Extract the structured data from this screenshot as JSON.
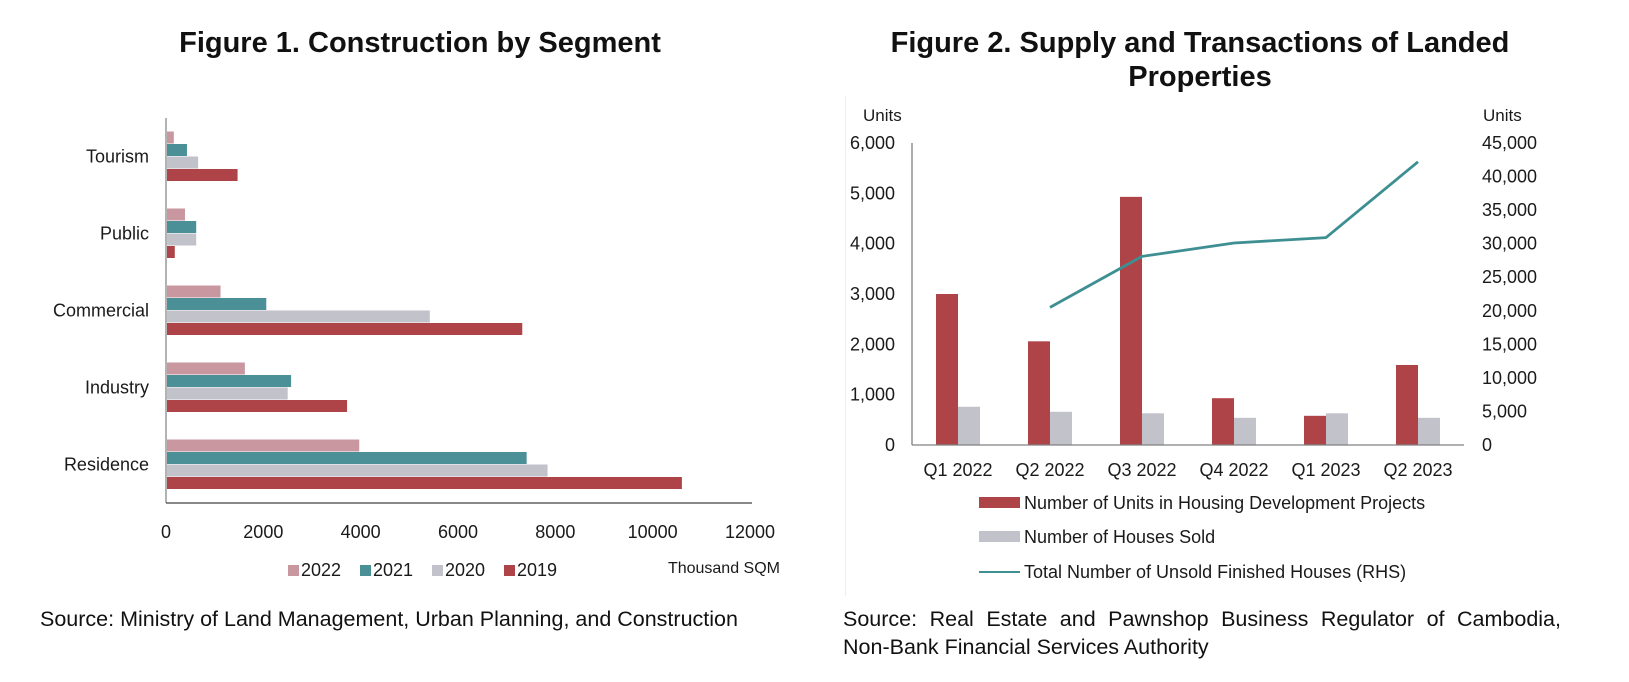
{
  "figure1": {
    "title": "Figure 1. Construction by Segment",
    "source": "Source: Ministry of Land Management, Urban Planning, and Construction"
  },
  "figure2": {
    "title": "Figure 2. Supply and Transactions of Landed Properties",
    "source": "Source: Real Estate and Pawnshop Business Regulator of Cambodia, Non-Bank Financial Services Authority"
  },
  "chart_data": [
    {
      "type": "bar",
      "orientation": "horizontal",
      "title": "Figure 1. Construction by Segment",
      "categories": [
        "Tourism",
        "Public",
        "Commercial",
        "Industry",
        "Residence"
      ],
      "series": [
        {
          "name": "2022",
          "color": "#C9979F",
          "values": [
            140,
            370,
            1100,
            1600,
            3950
          ]
        },
        {
          "name": "2021",
          "color": "#4A9096",
          "values": [
            410,
            600,
            2040,
            2550,
            7390
          ]
        },
        {
          "name": "2020",
          "color": "#C2C2CA",
          "values": [
            640,
            600,
            5400,
            2480,
            7820
          ]
        },
        {
          "name": "2019",
          "color": "#AE4448",
          "values": [
            1450,
            160,
            7300,
            3700,
            10580
          ]
        }
      ],
      "xlabel": "Thousand SQM",
      "ylabel": "",
      "xlim": [
        0,
        12000
      ],
      "xticks": [
        "0",
        "2000",
        "4000",
        "6000",
        "8000",
        "10000",
        "12000"
      ],
      "grid": false,
      "legend": "bottom"
    },
    {
      "type": "bar+line",
      "title": "Figure 2. Supply and Transactions of Landed Properties",
      "categories": [
        "Q1 2022",
        "Q2 2022",
        "Q3 2022",
        "Q4 2022",
        "Q1 2023",
        "Q2 2023"
      ],
      "left_axis": {
        "label": "Units",
        "ylim": [
          0,
          6000
        ],
        "ticks": [
          "0",
          "1,000",
          "2,000",
          "3,000",
          "4,000",
          "5,000",
          "6,000"
        ]
      },
      "right_axis": {
        "label": "Units",
        "ylim": [
          0,
          45000
        ],
        "ticks": [
          "0",
          "5,000",
          "10,000",
          "15,000",
          "20,000",
          "25,000",
          "30,000",
          "35,000",
          "40,000",
          "45,000"
        ]
      },
      "series": [
        {
          "name": "Number of Units in Housing Development Projects",
          "kind": "bar",
          "axis": "left",
          "color": "#AE4448",
          "values": [
            3000,
            2060,
            4930,
            930,
            580,
            1590
          ]
        },
        {
          "name": "Number of Houses Sold",
          "kind": "bar",
          "axis": "left",
          "color": "#C2C2CA",
          "values": [
            760,
            660,
            630,
            540,
            630,
            540
          ]
        },
        {
          "name": "Total Number of Unsold Finished Houses (RHS)",
          "kind": "line",
          "axis": "right",
          "color": "#3E8F92",
          "values": [
            null,
            20500,
            28100,
            30100,
            30900,
            42200
          ]
        }
      ],
      "grid": false,
      "legend": "bottom"
    }
  ]
}
